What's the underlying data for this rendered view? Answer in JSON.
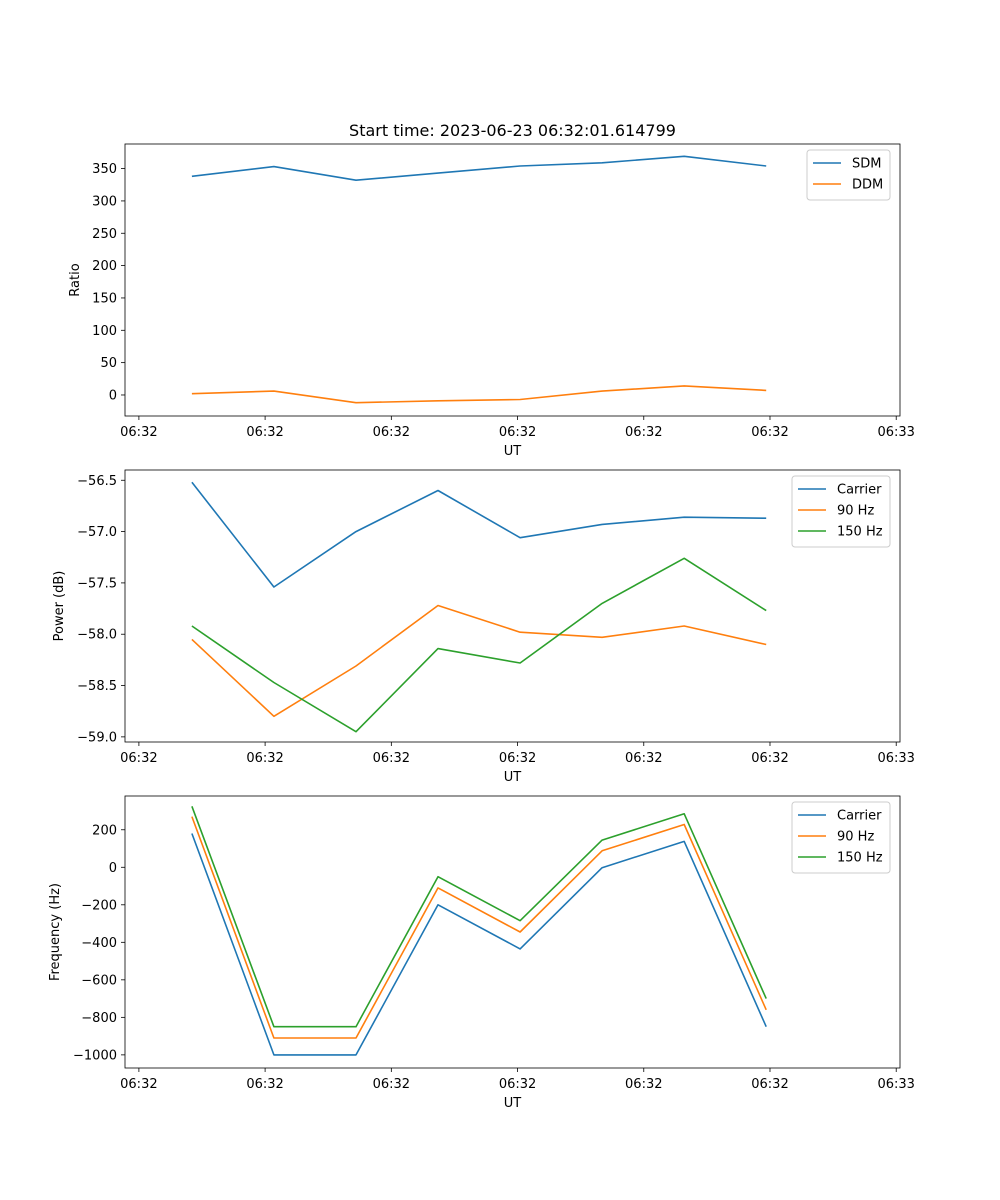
{
  "figure": {
    "title": "Start time: 2023-06-23 06:32:01.614799"
  },
  "chart_data": [
    {
      "type": "line",
      "title": "Start time: 2023-06-23 06:32:01.614799",
      "xlabel": "UT",
      "ylabel": "Ratio",
      "x_tick_labels": [
        "06:32",
        "06:32",
        "06:32",
        "06:32",
        "06:32",
        "06:32",
        "06:33"
      ],
      "x": [
        0.42,
        1.07,
        1.72,
        2.37,
        3.02,
        3.67,
        4.32,
        4.97
      ],
      "xlim": [
        -0.11,
        6.03
      ],
      "ylim": [
        -32.5,
        388
      ],
      "yticks": [
        0,
        50,
        100,
        150,
        200,
        250,
        300,
        350
      ],
      "grid": false,
      "legend_position": "top-right",
      "series": [
        {
          "name": "SDM",
          "color": "#1f77b4",
          "values": [
            338,
            353,
            332,
            343,
            354,
            359,
            369,
            354
          ]
        },
        {
          "name": "DDM",
          "color": "#ff7f0e",
          "values": [
            2,
            6,
            -12,
            -9,
            -7,
            6,
            14,
            7
          ]
        }
      ]
    },
    {
      "type": "line",
      "xlabel": "UT",
      "ylabel": "Power (dB)",
      "x_tick_labels": [
        "06:32",
        "06:32",
        "06:32",
        "06:32",
        "06:32",
        "06:32",
        "06:33"
      ],
      "x": [
        0.42,
        1.07,
        1.72,
        2.37,
        3.02,
        3.67,
        4.32,
        4.97
      ],
      "xlim": [
        -0.11,
        6.03
      ],
      "ylim": [
        -59.05,
        -56.4
      ],
      "yticks": [
        -59.0,
        -58.5,
        -58.0,
        -57.5,
        -57.0,
        -56.5
      ],
      "grid": false,
      "legend_position": "top-right",
      "series": [
        {
          "name": "Carrier",
          "color": "#1f77b4",
          "values": [
            -56.52,
            -57.54,
            -57.0,
            -56.6,
            -57.06,
            -56.93,
            -56.86,
            -56.87
          ]
        },
        {
          "name": "90 Hz",
          "color": "#ff7f0e",
          "values": [
            -58.05,
            -58.8,
            -58.31,
            -57.72,
            -57.98,
            -58.03,
            -57.92,
            -58.1
          ]
        },
        {
          "name": "150 Hz",
          "color": "#2ca02c",
          "values": [
            -57.92,
            -58.47,
            -58.95,
            -58.14,
            -58.28,
            -57.7,
            -57.26,
            -57.77
          ]
        }
      ]
    },
    {
      "type": "line",
      "xlabel": "UT",
      "ylabel": "Frequency (Hz)",
      "x_tick_labels": [
        "06:32",
        "06:32",
        "06:32",
        "06:32",
        "06:32",
        "06:32",
        "06:33"
      ],
      "x": [
        0.42,
        1.07,
        1.72,
        2.37,
        3.02,
        3.67,
        4.32,
        4.97
      ],
      "xlim": [
        -0.11,
        6.03
      ],
      "ylim": [
        -1070,
        380
      ],
      "yticks": [
        -1000,
        -800,
        -600,
        -400,
        -200,
        0,
        200
      ],
      "grid": false,
      "legend_position": "top-right",
      "series": [
        {
          "name": "Carrier",
          "color": "#1f77b4",
          "values": [
            180,
            -1000,
            -1000,
            -200,
            -435,
            -2,
            138,
            -850
          ]
        },
        {
          "name": "90 Hz",
          "color": "#ff7f0e",
          "values": [
            270,
            -910,
            -910,
            -110,
            -345,
            88,
            228,
            -760
          ]
        },
        {
          "name": "150 Hz",
          "color": "#2ca02c",
          "values": [
            325,
            -850,
            -850,
            -50,
            -285,
            145,
            285,
            -700
          ]
        }
      ]
    }
  ]
}
